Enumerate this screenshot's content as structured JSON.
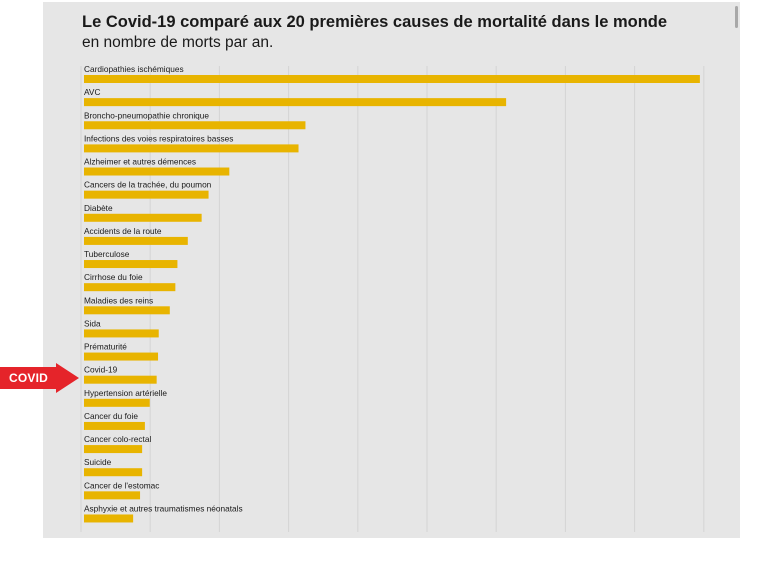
{
  "chart_data": {
    "type": "bar",
    "orientation": "horizontal",
    "title": "Le Covid-19 comparé aux 20 premières causes de mortalité dans le monde",
    "subtitle": "en nombre de morts par an.",
    "categories": [
      "Cardiopathies ischémiques",
      "AVC",
      "Broncho-pneumopathie chronique",
      "Infections des voies respiratoires basses",
      "Alzheimer et autres démences",
      "Cancers de la trachée, du poumon",
      "Diabète",
      "Accidents de la route",
      "Tuberculose",
      "Cirrhose du foie",
      "Maladies des reins",
      "Sida",
      "Prématurité",
      "Covid-19",
      "Hypertension artérielle",
      "Cancer du foie",
      "Cancer colo-rectal",
      "Suicide",
      "Cancer de l'estomac",
      "Asphyxie et autres traumatismes néonatals"
    ],
    "values": [
      8.9,
      6.1,
      3.2,
      3.1,
      2.1,
      1.8,
      1.7,
      1.5,
      1.35,
      1.32,
      1.24,
      1.08,
      1.07,
      1.05,
      0.95,
      0.88,
      0.84,
      0.84,
      0.81,
      0.71
    ],
    "bar_color": "#e8b400",
    "xlim": [
      0,
      10
    ],
    "grid": true,
    "legend": "none"
  },
  "annotation": {
    "label": "COVID",
    "color": "#e5242a"
  }
}
